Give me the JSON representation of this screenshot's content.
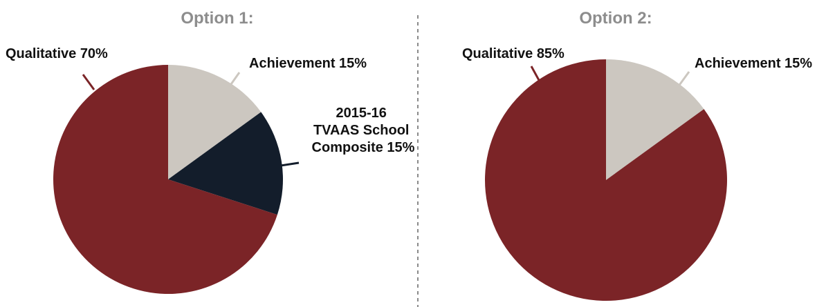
{
  "chart_data": [
    {
      "type": "pie",
      "title": "Option 1:",
      "slices": [
        {
          "label": "Achievement 15%",
          "value": 15,
          "color": "#ccc7c0",
          "leader_color": "#ccc7c0"
        },
        {
          "label_lines": [
            "2015-16",
            "TVAAS School",
            "Composite 15%"
          ],
          "value": 15,
          "color": "#131d2b",
          "leader_color": "#131d2b"
        },
        {
          "label": "Qualitative 70%",
          "value": 70,
          "color": "#7b2427",
          "leader_color": "#7b2427"
        }
      ]
    },
    {
      "type": "pie",
      "title": "Option 2:",
      "slices": [
        {
          "label": "Achievement 15%",
          "value": 15,
          "color": "#ccc7c0",
          "leader_color": "#ccc7c0"
        },
        {
          "label": "Qualitative 85%",
          "value": 85,
          "color": "#7b2427",
          "leader_color": "#7b2427"
        }
      ]
    }
  ]
}
